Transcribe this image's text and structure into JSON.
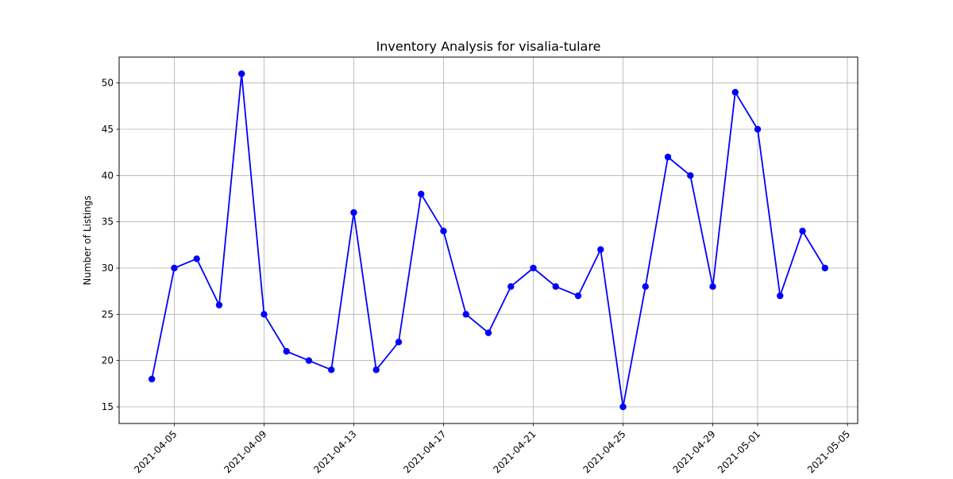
{
  "chart_data": {
    "type": "line",
    "title": "Inventory Analysis for visalia-tulare",
    "xlabel": "",
    "ylabel": "Number of Listings",
    "x_type": "date",
    "xlim": [
      "2021-04-02T13:00",
      "2021-05-05T11:00"
    ],
    "ylim": [
      13.2,
      52.8
    ],
    "x_ticks": [
      "2021-04-05",
      "2021-04-09",
      "2021-04-13",
      "2021-04-17",
      "2021-04-21",
      "2021-04-25",
      "2021-04-29",
      "2021-05-01",
      "2021-05-05"
    ],
    "y_ticks": [
      15,
      20,
      25,
      30,
      35,
      40,
      45,
      50
    ],
    "grid": true,
    "series": [
      {
        "color": "#0000ff",
        "marker": "circle",
        "x": [
          "2021-04-04",
          "2021-04-05",
          "2021-04-06",
          "2021-04-07",
          "2021-04-08",
          "2021-04-09",
          "2021-04-10",
          "2021-04-11",
          "2021-04-12",
          "2021-04-13",
          "2021-04-14",
          "2021-04-15",
          "2021-04-16",
          "2021-04-17",
          "2021-04-18",
          "2021-04-19",
          "2021-04-20",
          "2021-04-21",
          "2021-04-22",
          "2021-04-23",
          "2021-04-24",
          "2021-04-25",
          "2021-04-26",
          "2021-04-27",
          "2021-04-28",
          "2021-04-29",
          "2021-04-30",
          "2021-05-01",
          "2021-05-02",
          "2021-05-03",
          "2021-05-04"
        ],
        "values": [
          18,
          30,
          31,
          26,
          51,
          25,
          21,
          20,
          19,
          36,
          19,
          22,
          38,
          34,
          25,
          23,
          28,
          30,
          28,
          27,
          32,
          15,
          28,
          42,
          40,
          28,
          49,
          45,
          27,
          34,
          30
        ]
      }
    ]
  }
}
